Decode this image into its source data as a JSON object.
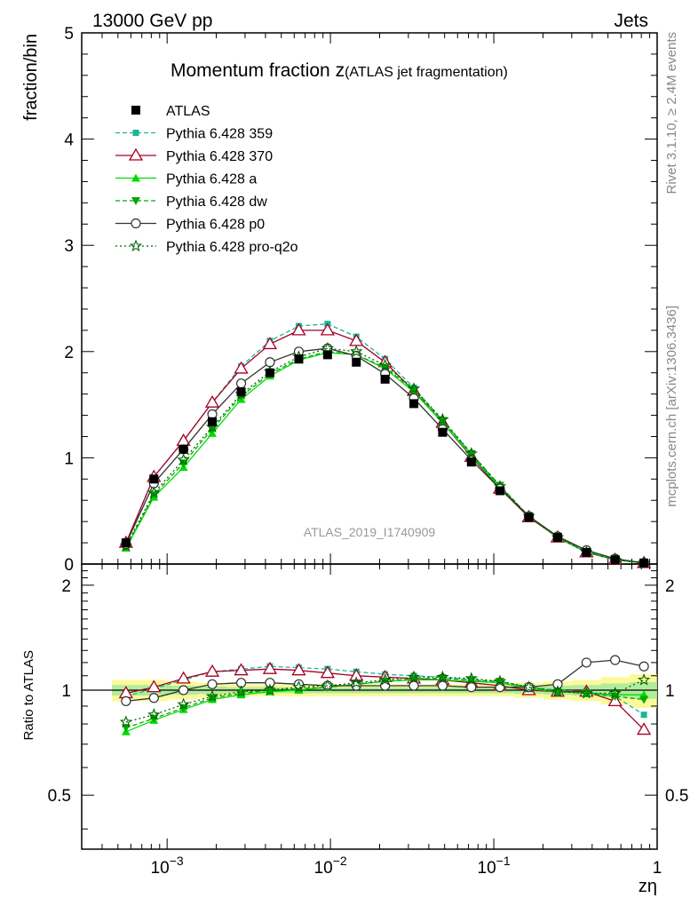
{
  "header": {
    "left": "13000 GeV pp",
    "right": "Jets"
  },
  "side": {
    "rivet": "Rivet 3.1.10, ≥ 2.4M events",
    "mcplots": "mcplots.cern.ch [arXiv:1306.3436]"
  },
  "chart_data": {
    "type": "line",
    "title_main": "Momentum fraction z",
    "title_sub": "(ATLAS jet fragmentation)",
    "watermark": "ATLAS_2019_I1740909",
    "xlabel": "zη",
    "ylabel": "fraction/bin",
    "ratio_ylabel": "Ratio to ATLAS",
    "xscale": "log",
    "xlim": [
      0.0003,
      1
    ],
    "ylim": [
      0,
      5
    ],
    "ratio_ylim": [
      0.35,
      2.3
    ],
    "main_yticks": [
      "0",
      "1",
      "2",
      "3",
      "4",
      "5"
    ],
    "ratio_yticks": [
      "0.5",
      "1",
      "2"
    ],
    "xtick_labels": [
      {
        "base": "10",
        "exp": "−3",
        "value": 0.001
      },
      {
        "base": "10",
        "exp": "−2",
        "value": 0.01
      },
      {
        "base": "10",
        "exp": "−1",
        "value": 0.1
      },
      {
        "base": "1",
        "exp": "",
        "value": 1
      }
    ],
    "legend_position": "top-left",
    "x": [
      0.00056,
      0.00083,
      0.00126,
      0.00189,
      0.00284,
      0.00426,
      0.0064,
      0.0096,
      0.0144,
      0.0216,
      0.0324,
      0.0486,
      0.0729,
      0.109,
      0.164,
      0.246,
      0.369,
      0.553,
      0.83
    ],
    "data": {
      "name": "ATLAS",
      "values": [
        0.2,
        0.8,
        1.08,
        1.34,
        1.62,
        1.8,
        1.93,
        1.97,
        1.9,
        1.74,
        1.51,
        1.24,
        0.96,
        0.69,
        0.44,
        0.25,
        0.11,
        0.04,
        0.01
      ],
      "band_total": [
        0.07,
        0.07,
        0.06,
        0.05,
        0.04,
        0.04,
        0.04,
        0.04,
        0.04,
        0.04,
        0.04,
        0.04,
        0.04,
        0.04,
        0.05,
        0.06,
        0.07,
        0.09,
        0.11
      ],
      "band_stat": [
        0.035,
        0.035,
        0.03,
        0.025,
        0.02,
        0.02,
        0.02,
        0.02,
        0.02,
        0.02,
        0.02,
        0.02,
        0.02,
        0.02,
        0.025,
        0.03,
        0.035,
        0.045,
        0.055
      ]
    },
    "series": [
      {
        "name": "Pythia 6.428 359",
        "color": "#17b894",
        "dash": "5,3",
        "marker": "square",
        "values": [
          0.19,
          0.82,
          1.16,
          1.52,
          1.86,
          2.1,
          2.24,
          2.26,
          2.14,
          1.93,
          1.66,
          1.35,
          1.03,
          0.73,
          0.45,
          0.26,
          0.12,
          0.04,
          0.01
        ],
        "ratio": [
          0.96,
          1.01,
          1.07,
          1.13,
          1.15,
          1.17,
          1.16,
          1.15,
          1.13,
          1.11,
          1.1,
          1.09,
          1.07,
          1.05,
          1.02,
          1.0,
          0.99,
          0.96,
          0.85
        ]
      },
      {
        "name": "Pythia 6.428 370",
        "color": "#a50026",
        "dash": "",
        "marker": "triangle-open",
        "values": [
          0.2,
          0.82,
          1.16,
          1.52,
          1.84,
          2.07,
          2.2,
          2.2,
          2.1,
          1.9,
          1.63,
          1.33,
          1.01,
          0.71,
          0.44,
          0.25,
          0.11,
          0.04,
          0.01
        ],
        "ratio": [
          0.98,
          1.02,
          1.08,
          1.13,
          1.14,
          1.15,
          1.14,
          1.12,
          1.1,
          1.09,
          1.08,
          1.07,
          1.05,
          1.03,
          1.0,
          0.99,
          0.99,
          0.93,
          0.77
        ]
      },
      {
        "name": "Pythia 6.428 a",
        "color": "#00dd00",
        "dash": "",
        "marker": "triangle",
        "values": [
          0.15,
          0.63,
          0.91,
          1.23,
          1.55,
          1.77,
          1.92,
          1.99,
          1.97,
          1.84,
          1.62,
          1.33,
          1.02,
          0.72,
          0.45,
          0.25,
          0.11,
          0.04,
          0.01
        ],
        "ratio": [
          0.76,
          0.82,
          0.88,
          0.94,
          0.97,
          0.99,
          1.0,
          1.02,
          1.04,
          1.06,
          1.07,
          1.07,
          1.06,
          1.05,
          1.01,
          0.99,
          0.98,
          0.97,
          0.97
        ]
      },
      {
        "name": "Pythia 6.428 dw",
        "color": "#00aa00",
        "dash": "5,3",
        "marker": "triangle-down",
        "values": [
          0.16,
          0.65,
          0.95,
          1.27,
          1.58,
          1.79,
          1.93,
          2.0,
          1.97,
          1.85,
          1.64,
          1.35,
          1.04,
          0.74,
          0.45,
          0.25,
          0.11,
          0.04,
          0.01
        ],
        "ratio": [
          0.78,
          0.83,
          0.89,
          0.95,
          0.98,
          1.0,
          1.01,
          1.02,
          1.04,
          1.06,
          1.08,
          1.08,
          1.07,
          1.06,
          1.02,
          0.99,
          0.98,
          0.96,
          0.94
        ]
      },
      {
        "name": "Pythia 6.428 p0",
        "color": "#333333",
        "dash": "",
        "marker": "circle-open",
        "values": [
          0.19,
          0.76,
          1.08,
          1.41,
          1.7,
          1.9,
          2.0,
          2.03,
          1.96,
          1.79,
          1.56,
          1.27,
          0.98,
          0.71,
          0.45,
          0.26,
          0.13,
          0.05,
          0.01
        ],
        "ratio": [
          0.93,
          0.95,
          1.0,
          1.04,
          1.05,
          1.05,
          1.04,
          1.03,
          1.03,
          1.03,
          1.03,
          1.03,
          1.02,
          1.02,
          1.02,
          1.04,
          1.2,
          1.22,
          1.17
        ]
      },
      {
        "name": "Pythia 6.428 pro-q2o",
        "color": "#006400",
        "dash": "2,3",
        "marker": "star-open",
        "values": [
          0.17,
          0.67,
          0.98,
          1.29,
          1.6,
          1.81,
          1.95,
          2.03,
          2.0,
          1.87,
          1.65,
          1.36,
          1.04,
          0.73,
          0.45,
          0.25,
          0.11,
          0.04,
          0.01
        ],
        "ratio": [
          0.81,
          0.85,
          0.91,
          0.96,
          0.99,
          1.0,
          1.02,
          1.03,
          1.05,
          1.07,
          1.09,
          1.09,
          1.08,
          1.06,
          1.02,
          0.99,
          0.98,
          0.98,
          1.07
        ]
      }
    ]
  }
}
